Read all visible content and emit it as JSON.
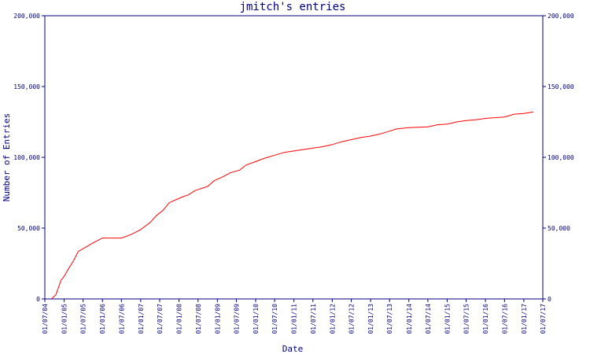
{
  "chart_data": {
    "type": "line",
    "title": "jmitch's entries",
    "xlabel": "Date",
    "ylabel": "Number of Entries",
    "ylim": [
      0,
      200000
    ],
    "xlim": [
      "2004-07-01",
      "2017-07-01"
    ],
    "y_ticks": [
      0,
      50000,
      100000,
      150000,
      200000
    ],
    "y_tick_labels": [
      "0",
      "50,000",
      "100,000",
      "150,000",
      "200,000"
    ],
    "x_ticks": [
      "2004-07-01",
      "2005-01-01",
      "2005-07-01",
      "2006-01-01",
      "2006-07-01",
      "2007-01-01",
      "2007-07-01",
      "2008-01-01",
      "2008-07-01",
      "2009-01-01",
      "2009-07-01",
      "2010-01-01",
      "2010-07-01",
      "2011-01-01",
      "2011-07-01",
      "2012-01-01",
      "2012-07-01",
      "2013-01-01",
      "2013-07-01",
      "2014-01-01",
      "2014-07-01",
      "2015-01-01",
      "2015-07-01",
      "2016-01-01",
      "2016-07-01",
      "2017-01-01",
      "2017-07-01"
    ],
    "x_tick_labels": [
      "01/07/04",
      "01/01/05",
      "01/07/05",
      "01/01/06",
      "01/07/06",
      "01/01/07",
      "01/07/07",
      "01/01/08",
      "01/07/08",
      "01/01/09",
      "01/07/09",
      "01/01/10",
      "01/07/10",
      "01/01/11",
      "01/07/11",
      "01/01/12",
      "01/07/12",
      "01/01/13",
      "01/07/13",
      "01/01/14",
      "01/07/14",
      "01/01/15",
      "01/07/15",
      "01/01/16",
      "01/07/16",
      "01/01/17",
      "01/07/17"
    ],
    "grid": false,
    "series": [
      {
        "color": "#ff0000",
        "points": [
          [
            "2004-09-01",
            0
          ],
          [
            "2004-10-15",
            3000
          ],
          [
            "2004-12-01",
            13000
          ],
          [
            "2005-01-01",
            16000
          ],
          [
            "2005-02-01",
            20000
          ],
          [
            "2005-04-01",
            27000
          ],
          [
            "2005-05-15",
            33500
          ],
          [
            "2005-07-01",
            35500
          ],
          [
            "2005-10-01",
            39500
          ],
          [
            "2006-01-01",
            43000
          ],
          [
            "2006-04-01",
            43000
          ],
          [
            "2006-07-01",
            43000
          ],
          [
            "2006-10-01",
            45500
          ],
          [
            "2007-01-01",
            49000
          ],
          [
            "2007-04-01",
            54000
          ],
          [
            "2007-06-01",
            59000
          ],
          [
            "2007-08-01",
            62500
          ],
          [
            "2007-10-01",
            68000
          ],
          [
            "2007-12-01",
            70000
          ],
          [
            "2008-02-01",
            72000
          ],
          [
            "2008-04-01",
            73500
          ],
          [
            "2008-06-01",
            76500
          ],
          [
            "2008-08-01",
            78000
          ],
          [
            "2008-10-01",
            79500
          ],
          [
            "2008-12-01",
            83500
          ],
          [
            "2009-03-01",
            86500
          ],
          [
            "2009-05-01",
            89000
          ],
          [
            "2009-08-01",
            91000
          ],
          [
            "2009-10-01",
            94500
          ],
          [
            "2010-01-01",
            97000
          ],
          [
            "2010-04-01",
            99500
          ],
          [
            "2010-07-01",
            101500
          ],
          [
            "2010-10-01",
            103500
          ],
          [
            "2011-01-01",
            104500
          ],
          [
            "2011-04-01",
            105500
          ],
          [
            "2011-07-01",
            106500
          ],
          [
            "2011-10-01",
            107500
          ],
          [
            "2012-01-01",
            109000
          ],
          [
            "2012-04-01",
            111000
          ],
          [
            "2012-07-01",
            112500
          ],
          [
            "2012-10-01",
            114000
          ],
          [
            "2013-01-01",
            115000
          ],
          [
            "2013-04-01",
            116500
          ],
          [
            "2013-07-01",
            118500
          ],
          [
            "2013-09-01",
            120000
          ],
          [
            "2014-01-01",
            121000
          ],
          [
            "2014-07-01",
            121500
          ],
          [
            "2014-10-01",
            123000
          ],
          [
            "2015-01-01",
            123500
          ],
          [
            "2015-04-01",
            125000
          ],
          [
            "2015-07-01",
            126000
          ],
          [
            "2015-10-01",
            126500
          ],
          [
            "2016-01-01",
            127500
          ],
          [
            "2016-07-01",
            128500
          ],
          [
            "2016-10-01",
            130500
          ],
          [
            "2017-01-01",
            131000
          ],
          [
            "2017-04-01",
            132000
          ]
        ]
      }
    ]
  }
}
